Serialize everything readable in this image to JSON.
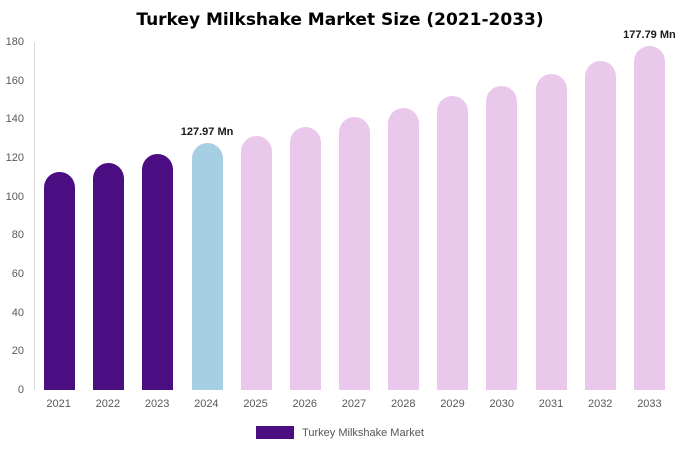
{
  "title": "Turkey Milkshake Market Size (2021-2033)",
  "legend": {
    "label": "Turkey Milkshake Market",
    "swatch_color": "#4a0d82"
  },
  "colors": {
    "primary_purple": "#4a0d82",
    "highlight_blue": "#a7cfe3",
    "forecast_pink": "#e9c8ec",
    "axis_text": "#595959"
  },
  "chart_data": {
    "type": "bar",
    "title": "Turkey Milkshake Market Size (2021-2033)",
    "xlabel": "",
    "ylabel": "",
    "ylim": [
      0,
      180
    ],
    "y_ticks": [
      0,
      20,
      40,
      60,
      80,
      100,
      120,
      140,
      160,
      180
    ],
    "grid": false,
    "legend_position": "bottom",
    "categories": [
      "2021",
      "2022",
      "2023",
      "2024",
      "2025",
      "2026",
      "2027",
      "2028",
      "2029",
      "2030",
      "2031",
      "2032",
      "2033"
    ],
    "values": [
      113,
      117.5,
      122,
      127.97,
      131.5,
      136,
      141,
      146,
      152,
      157.5,
      163.5,
      170,
      177.79
    ],
    "bar_colors": [
      "#4a0d82",
      "#4a0d82",
      "#4a0d82",
      "#a7cfe3",
      "#e9c8ec",
      "#e9c8ec",
      "#e9c8ec",
      "#e9c8ec",
      "#e9c8ec",
      "#e9c8ec",
      "#e9c8ec",
      "#e9c8ec",
      "#e9c8ec"
    ],
    "data_labels": [
      {
        "index": 3,
        "text": "127.97 Mn"
      },
      {
        "index": 12,
        "text": "177.79 Mn"
      }
    ]
  }
}
